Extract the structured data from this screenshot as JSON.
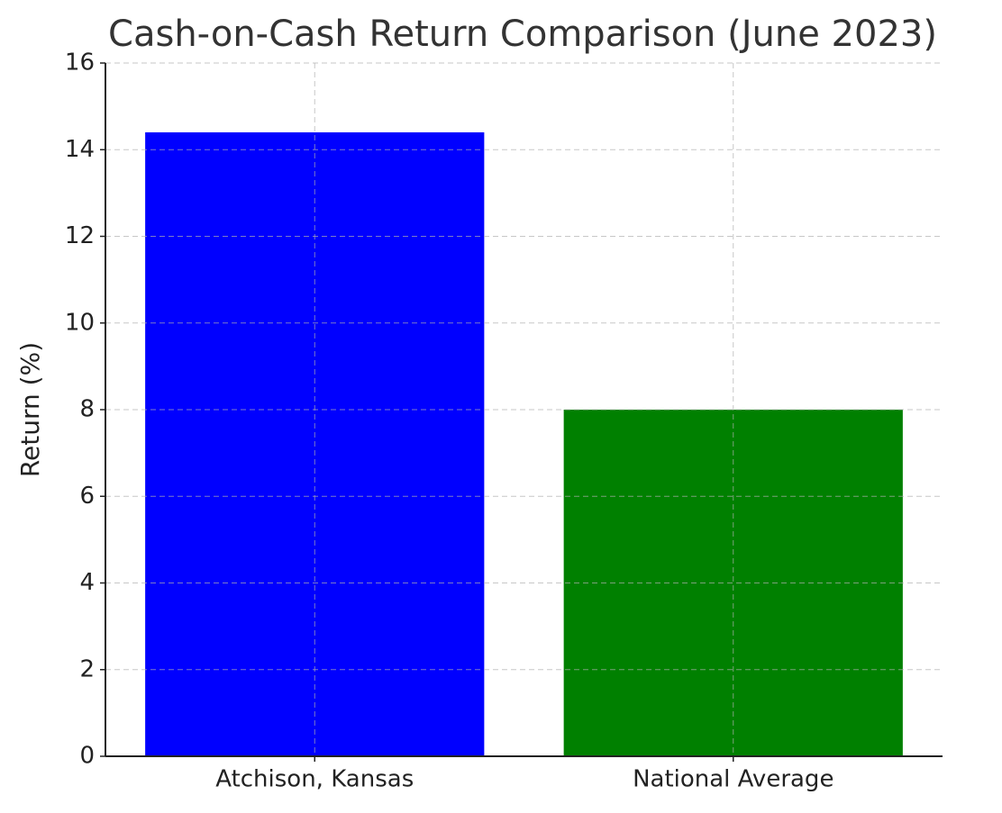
{
  "chart_data": {
    "type": "bar",
    "title": "Cash-on-Cash Return Comparison (June 2023)",
    "y_label": "Return (%)",
    "categories": [
      "Atchison, Kansas",
      "National Average"
    ],
    "values": [
      14.4,
      8
    ],
    "colors": [
      "#0000ff",
      "#008000"
    ],
    "ylim": [
      0,
      16
    ],
    "yticks": [
      0,
      2,
      4,
      6,
      8,
      10,
      12,
      14,
      16
    ],
    "grid": true
  }
}
